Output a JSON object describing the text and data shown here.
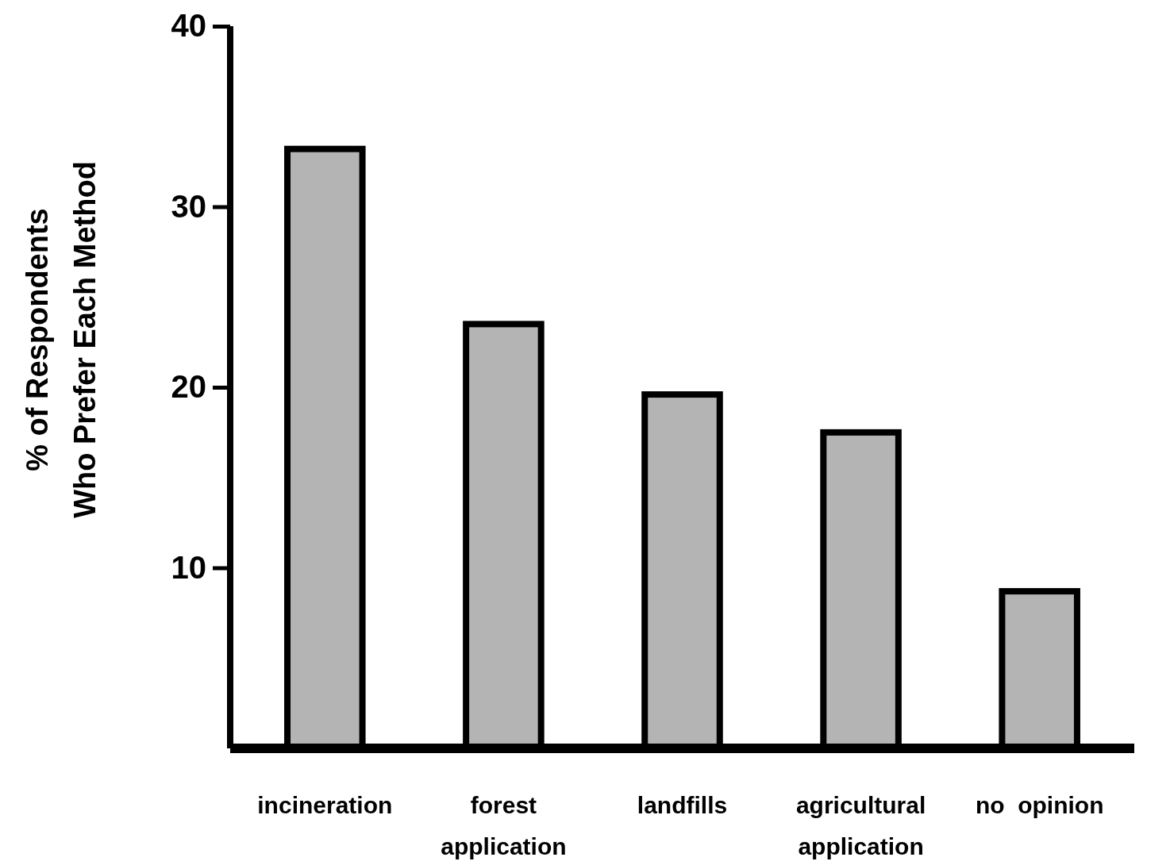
{
  "chart_data": {
    "type": "bar",
    "ylabel": "% of Respondents\nWho Prefer Each Method",
    "categories": [
      "incineration",
      "forest\napplication",
      "landfills",
      "agricultural\napplication",
      "no  opinion"
    ],
    "values": [
      33.2,
      23.5,
      19.6,
      17.5,
      8.7
    ],
    "color": "#b4b4b4",
    "ylim": [
      0,
      40
    ],
    "yticks": [
      10,
      20,
      30,
      40
    ],
    "grid": false
  }
}
